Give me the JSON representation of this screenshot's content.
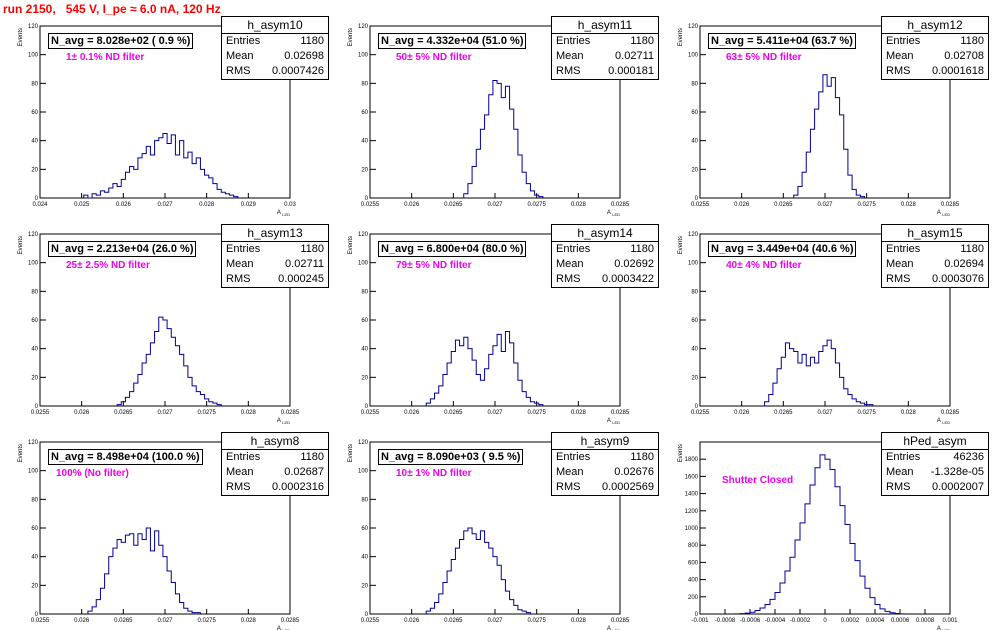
{
  "run_title": "run 2150,   545 V, I_pe ≈ 6.0 nA, 120 Hz",
  "colors": {
    "hist": "#000099",
    "title": "#ff0000",
    "filter_label": "#ee00ee"
  },
  "chart_data": [
    {
      "type": "histogram",
      "hist_name": "h_asym10",
      "n_avg": "N_avg = 8.028e+02 ( 0.9 %)",
      "filter": "1± 0.1% ND filter",
      "stats": {
        "entries": "1180",
        "mean": "0.02698",
        "rms": "0.0007426"
      },
      "xlabel": "A_LED",
      "ylabel": "Events",
      "xlim": [
        0.024,
        0.03
      ],
      "ylim": [
        0,
        120
      ],
      "xticks": [
        "0.024",
        "0.025",
        "0.026",
        "0.027",
        "0.028",
        "0.029",
        "0.03"
      ],
      "yticks": [
        "0",
        "20",
        "40",
        "60",
        "80",
        "100",
        "120"
      ],
      "x": [
        0.0251,
        0.0252,
        0.0253,
        0.0254,
        0.0255,
        0.0256,
        0.0257,
        0.0258,
        0.0259,
        0.026,
        0.0261,
        0.0262,
        0.0263,
        0.0264,
        0.0265,
        0.0266,
        0.0267,
        0.0268,
        0.0269,
        0.027,
        0.0271,
        0.0272,
        0.0273,
        0.0274,
        0.0275,
        0.0276,
        0.0277,
        0.0278,
        0.0279,
        0.028,
        0.0281,
        0.0282,
        0.0283,
        0.0284,
        0.0285,
        0.0286,
        0.0287
      ],
      "bin_width": 0.0001,
      "values": [
        2,
        0,
        3,
        2,
        5,
        4,
        7,
        10,
        8,
        13,
        18,
        22,
        20,
        28,
        31,
        36,
        30,
        40,
        42,
        45,
        38,
        44,
        30,
        40,
        28,
        32,
        24,
        28,
        20,
        16,
        14,
        10,
        6,
        4,
        3,
        2,
        1
      ]
    },
    {
      "type": "histogram",
      "hist_name": "h_asym11",
      "n_avg": "N_avg = 4.332e+04 (51.0 %)",
      "filter": "50± 5% ND filter",
      "stats": {
        "entries": "1180",
        "mean": "0.02711",
        "rms": "0.000181"
      },
      "xlabel": "A_LED",
      "ylabel": "Events",
      "xlim": [
        0.0255,
        0.0285
      ],
      "ylim": [
        0,
        120
      ],
      "xticks": [
        "0.0255",
        "0.026",
        "0.0265",
        "0.027",
        "0.0275",
        "0.028",
        "0.0285"
      ],
      "yticks": [
        "0",
        "20",
        "40",
        "60",
        "80",
        "100",
        "120"
      ],
      "x": [
        0.02665,
        0.0267,
        0.02675,
        0.0268,
        0.02685,
        0.0269,
        0.02695,
        0.027,
        0.02705,
        0.0271,
        0.02715,
        0.0272,
        0.02725,
        0.0273,
        0.02735,
        0.0274,
        0.02745,
        0.0275,
        0.02755
      ],
      "bin_width": 5e-05,
      "values": [
        3,
        10,
        22,
        34,
        48,
        58,
        72,
        82,
        80,
        70,
        78,
        62,
        48,
        30,
        18,
        10,
        5,
        2,
        1
      ]
    },
    {
      "type": "histogram",
      "hist_name": "h_asym12",
      "n_avg": "N_avg = 5.411e+04 (63.7 %)",
      "filter": "63± 5% ND filter",
      "stats": {
        "entries": "1180",
        "mean": "0.02708",
        "rms": "0.0001618"
      },
      "xlabel": "A_LED",
      "ylabel": "Events",
      "xlim": [
        0.0255,
        0.0285
      ],
      "ylim": [
        0,
        120
      ],
      "xticks": [
        "0.0255",
        "0.026",
        "0.0265",
        "0.027",
        "0.0275",
        "0.028",
        "0.0285"
      ],
      "yticks": [
        "0",
        "20",
        "40",
        "60",
        "80",
        "100",
        "120"
      ],
      "x": [
        0.02665,
        0.0267,
        0.02675,
        0.0268,
        0.02685,
        0.0269,
        0.02695,
        0.027,
        0.02705,
        0.0271,
        0.02715,
        0.0272,
        0.02725,
        0.0273,
        0.02735,
        0.0274,
        0.02745
      ],
      "bin_width": 5e-05,
      "values": [
        2,
        8,
        18,
        32,
        48,
        62,
        74,
        86,
        78,
        84,
        70,
        58,
        34,
        16,
        6,
        2,
        1
      ]
    },
    {
      "type": "histogram",
      "hist_name": "h_asym13",
      "n_avg": "N_avg = 2.213e+04 (26.0 %)",
      "filter": "25± 2.5% ND filter",
      "stats": {
        "entries": "1180",
        "mean": "0.02711",
        "rms": "0.000245"
      },
      "xlabel": "A_LED",
      "ylabel": "Events",
      "xlim": [
        0.0255,
        0.0285
      ],
      "ylim": [
        0,
        120
      ],
      "xticks": [
        "0.0255",
        "0.026",
        "0.0265",
        "0.027",
        "0.0275",
        "0.028",
        "0.0285"
      ],
      "yticks": [
        "0",
        "20",
        "40",
        "60",
        "80",
        "100",
        "120"
      ],
      "x": [
        0.02645,
        0.0265,
        0.02655,
        0.0266,
        0.02665,
        0.0267,
        0.02675,
        0.0268,
        0.02685,
        0.0269,
        0.02695,
        0.027,
        0.02705,
        0.0271,
        0.02715,
        0.0272,
        0.02725,
        0.0273,
        0.02735,
        0.0274,
        0.02745,
        0.0275,
        0.02755,
        0.0276,
        0.02765
      ],
      "bin_width": 5e-05,
      "values": [
        1,
        3,
        6,
        10,
        16,
        22,
        30,
        36,
        44,
        52,
        62,
        60,
        54,
        48,
        42,
        36,
        28,
        20,
        14,
        10,
        8,
        5,
        3,
        2,
        1
      ]
    },
    {
      "type": "histogram",
      "hist_name": "h_asym14",
      "n_avg": "N_avg = 6.800e+04 (80.0 %)",
      "filter": "79± 5% ND filter",
      "stats": {
        "entries": "1180",
        "mean": "0.02692",
        "rms": "0.0003422"
      },
      "xlabel": "A_LED",
      "ylabel": "Events",
      "xlim": [
        0.0255,
        0.0285
      ],
      "ylim": [
        0,
        120
      ],
      "xticks": [
        "0.0255",
        "0.026",
        "0.0265",
        "0.027",
        "0.0275",
        "0.028",
        "0.0285"
      ],
      "yticks": [
        "0",
        "20",
        "40",
        "60",
        "80",
        "100",
        "120"
      ],
      "x": [
        0.0262,
        0.02625,
        0.0263,
        0.02635,
        0.0264,
        0.02645,
        0.0265,
        0.02655,
        0.0266,
        0.02665,
        0.0267,
        0.02675,
        0.0268,
        0.02685,
        0.0269,
        0.02695,
        0.027,
        0.02705,
        0.0271,
        0.02715,
        0.0272,
        0.02725,
        0.0273,
        0.02735,
        0.0274,
        0.02745,
        0.0275,
        0.02755
      ],
      "bin_width": 5e-05,
      "values": [
        2,
        5,
        9,
        14,
        22,
        30,
        38,
        46,
        42,
        48,
        40,
        32,
        22,
        18,
        26,
        36,
        42,
        50,
        38,
        52,
        44,
        30,
        18,
        10,
        6,
        3,
        2,
        1
      ]
    },
    {
      "type": "histogram",
      "hist_name": "h_asym15",
      "n_avg": "N_avg = 3.449e+04 (40.6 %)",
      "filter": "40± 4% ND filter",
      "stats": {
        "entries": "1180",
        "mean": "0.02694",
        "rms": "0.0003076"
      },
      "xlabel": "A_LED",
      "ylabel": "Events",
      "xlim": [
        0.0255,
        0.0285
      ],
      "ylim": [
        0,
        120
      ],
      "xticks": [
        "0.0255",
        "0.026",
        "0.0265",
        "0.027",
        "0.0275",
        "0.028",
        "0.0285"
      ],
      "yticks": [
        "0",
        "20",
        "40",
        "60",
        "80",
        "100",
        "120"
      ],
      "x": [
        0.0263,
        0.02635,
        0.0264,
        0.02645,
        0.0265,
        0.02655,
        0.0266,
        0.02665,
        0.0267,
        0.02675,
        0.0268,
        0.02685,
        0.0269,
        0.02695,
        0.027,
        0.02705,
        0.0271,
        0.02715,
        0.0272,
        0.02725,
        0.0273,
        0.02735,
        0.0274,
        0.02745,
        0.0275,
        0.02755
      ],
      "bin_width": 5e-05,
      "values": [
        3,
        8,
        16,
        26,
        34,
        44,
        40,
        38,
        30,
        36,
        28,
        34,
        30,
        38,
        42,
        46,
        40,
        30,
        20,
        12,
        8,
        5,
        3,
        2,
        1,
        1
      ]
    },
    {
      "type": "histogram",
      "hist_name": "h_asym8",
      "n_avg": "N_avg = 8.498e+04 (100.0 %)",
      "filter": "100% (No filter)",
      "stats": {
        "entries": "1180",
        "mean": "0.02687",
        "rms": "0.0002316"
      },
      "xlabel": "A_LED",
      "ylabel": "Events",
      "xlim": [
        0.0255,
        0.0285
      ],
      "ylim": [
        0,
        120
      ],
      "xticks": [
        "0.0255",
        "0.026",
        "0.0265",
        "0.027",
        "0.0275",
        "0.028",
        "0.0285"
      ],
      "yticks": [
        "0",
        "20",
        "40",
        "60",
        "80",
        "100",
        "120"
      ],
      "x": [
        0.0261,
        0.02615,
        0.0262,
        0.02625,
        0.0263,
        0.02635,
        0.0264,
        0.02645,
        0.0265,
        0.02655,
        0.0266,
        0.02665,
        0.0267,
        0.02675,
        0.0268,
        0.02685,
        0.0269,
        0.02695,
        0.027,
        0.02705,
        0.0271,
        0.02715,
        0.0272,
        0.02725,
        0.0273,
        0.02735,
        0.0274
      ],
      "bin_width": 5e-05,
      "values": [
        2,
        5,
        10,
        18,
        28,
        40,
        46,
        52,
        50,
        55,
        56,
        48,
        56,
        52,
        60,
        44,
        58,
        48,
        40,
        30,
        22,
        14,
        8,
        4,
        2,
        1,
        1
      ]
    },
    {
      "type": "histogram",
      "hist_name": "h_asym9",
      "n_avg": "N_avg = 8.090e+03 ( 9.5 %)",
      "filter": "10± 1% ND filter",
      "stats": {
        "entries": "1180",
        "mean": "0.02676",
        "rms": "0.0002569"
      },
      "xlabel": "A_LED",
      "ylabel": "Events",
      "xlim": [
        0.0255,
        0.0285
      ],
      "ylim": [
        0,
        120
      ],
      "xticks": [
        "0.0255",
        "0.026",
        "0.0265",
        "0.027",
        "0.0275",
        "0.028",
        "0.0285"
      ],
      "yticks": [
        "0",
        "20",
        "40",
        "60",
        "80",
        "100",
        "120"
      ],
      "x": [
        0.0262,
        0.02625,
        0.0263,
        0.02635,
        0.0264,
        0.02645,
        0.0265,
        0.02655,
        0.0266,
        0.02665,
        0.0267,
        0.02675,
        0.0268,
        0.02685,
        0.0269,
        0.02695,
        0.027,
        0.02705,
        0.0271,
        0.02715,
        0.0272,
        0.02725,
        0.0273,
        0.02735,
        0.0274
      ],
      "bin_width": 5e-05,
      "values": [
        2,
        4,
        8,
        14,
        22,
        30,
        38,
        46,
        52,
        58,
        60,
        56,
        52,
        58,
        50,
        46,
        40,
        34,
        24,
        16,
        10,
        6,
        3,
        2,
        1
      ]
    },
    {
      "type": "histogram",
      "hist_name": "hPed_asym",
      "n_avg": "",
      "filter": "Shutter Closed",
      "stats": {
        "entries": "46236",
        "mean": "-1.328e-05",
        "rms": "0.0002007"
      },
      "xlabel": "A_LED",
      "ylabel": "Events",
      "xlim": [
        -0.001,
        0.001
      ],
      "ylim": [
        0,
        2000
      ],
      "xticks": [
        "-0.001",
        "-0.0008",
        "-0.0006",
        "-0.0004",
        "-0.0002",
        "0",
        "0.0002",
        "0.0004",
        "0.0006",
        "0.0008",
        "0.001"
      ],
      "yticks": [
        "0",
        "200",
        "400",
        "600",
        "800",
        "1000",
        "1200",
        "1400",
        "1600",
        "1800"
      ],
      "x": [
        -0.0007,
        -0.00066,
        -0.00062,
        -0.00058,
        -0.00054,
        -0.0005,
        -0.00046,
        -0.00042,
        -0.00038,
        -0.00034,
        -0.0003,
        -0.00026,
        -0.00022,
        -0.00018,
        -0.00014,
        -0.0001,
        -6e-05,
        -2e-05,
        2e-05,
        6e-05,
        0.0001,
        0.00014,
        0.00018,
        0.00022,
        0.00026,
        0.0003,
        0.00034,
        0.00038,
        0.00042,
        0.00046,
        0.0005,
        0.00054,
        0.00058,
        0.00062
      ],
      "bin_width": 4e-05,
      "values": [
        2,
        5,
        10,
        20,
        40,
        70,
        110,
        170,
        250,
        360,
        500,
        660,
        860,
        1060,
        1280,
        1500,
        1700,
        1850,
        1800,
        1680,
        1480,
        1260,
        1040,
        820,
        620,
        440,
        300,
        190,
        110,
        60,
        30,
        14,
        6,
        2
      ]
    }
  ]
}
